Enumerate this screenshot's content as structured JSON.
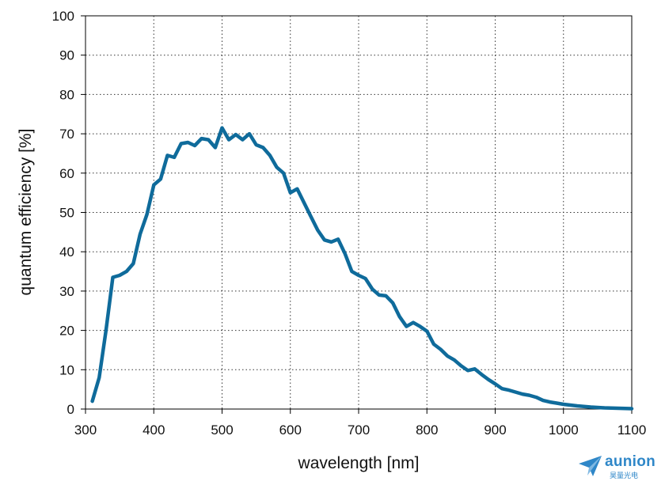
{
  "chart_data": {
    "type": "line",
    "title": "",
    "xlabel": "wavelength [nm]",
    "ylabel": "quantum efficiency [%]",
    "xlim": [
      300,
      1100
    ],
    "ylim": [
      0,
      100
    ],
    "xticks": [
      300,
      400,
      500,
      600,
      700,
      800,
      900,
      1000,
      1100
    ],
    "yticks": [
      0,
      10,
      20,
      30,
      40,
      50,
      60,
      70,
      80,
      90,
      100
    ],
    "grid": true,
    "legend": "none",
    "line_color": "#0f6b9b",
    "series": [
      {
        "x": [
          310,
          320,
          330,
          340,
          350,
          360,
          370,
          380,
          390,
          400,
          410,
          420,
          430,
          440,
          450,
          460,
          470,
          480,
          490,
          500,
          510,
          520,
          530,
          540,
          550,
          560,
          570,
          580,
          590,
          600,
          610,
          620,
          630,
          640,
          650,
          660,
          670,
          680,
          690,
          700,
          710,
          720,
          730,
          740,
          750,
          760,
          770,
          780,
          790,
          800,
          810,
          820,
          830,
          840,
          850,
          860,
          870,
          880,
          890,
          900,
          910,
          920,
          930,
          940,
          950,
          960,
          970,
          980,
          990,
          1000,
          1020,
          1040,
          1060,
          1080,
          1100
        ],
        "values": [
          2,
          8,
          20,
          33.5,
          34,
          35,
          37,
          44.5,
          49.5,
          57,
          58.5,
          64.5,
          64,
          67.5,
          67.8,
          67,
          68.8,
          68.5,
          66.5,
          71.5,
          68.5,
          69.8,
          68.5,
          70,
          67.2,
          66.5,
          64.5,
          61.5,
          60,
          55,
          56,
          52.5,
          49,
          45.5,
          43,
          42.5,
          43.2,
          39.5,
          35,
          34,
          33.2,
          30.5,
          29,
          28.8,
          27,
          23.5,
          21,
          22,
          21,
          19.8,
          16.5,
          15.2,
          13.5,
          12.5,
          11,
          9.8,
          10.2,
          8.8,
          7.5,
          6.4,
          5.2,
          4.8,
          4.3,
          3.8,
          3.5,
          3,
          2.2,
          1.8,
          1.5,
          1.2,
          0.8,
          0.5,
          0.3,
          0.2,
          0.1
        ]
      }
    ]
  },
  "branding": {
    "logo_text": "aunion",
    "logo_subtext": "昊量光电"
  }
}
